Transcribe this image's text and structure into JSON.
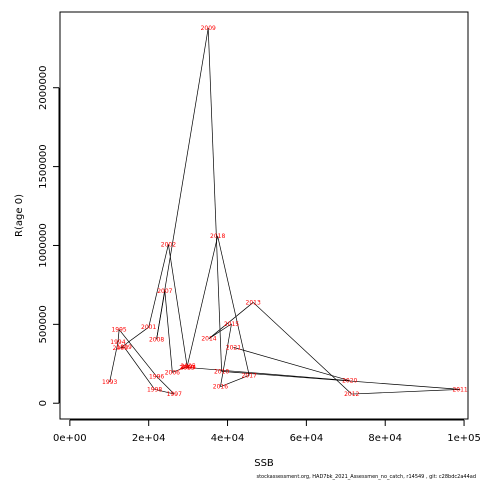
{
  "chart_data": {
    "type": "line",
    "title": "",
    "xlabel": "SSB",
    "ylabel": "R(age 0)",
    "xlim": [
      -2500,
      101000
    ],
    "ylim": [
      -100000,
      2480000
    ],
    "x_ticks": [
      0,
      20000,
      40000,
      60000,
      80000,
      100000
    ],
    "x_tick_labels": [
      "0e+00",
      "2e+04",
      "4e+04",
      "6e+04",
      "8e+04",
      "1e+05"
    ],
    "y_ticks": [
      0,
      500000,
      1000000,
      1500000,
      2000000
    ],
    "y_tick_labels": [
      "0",
      "500000",
      "1000000",
      "1500000",
      "2000000"
    ],
    "grid": false,
    "line_color": "#000000",
    "label_color": "#ff0000",
    "series": [
      {
        "points": [
          {
            "year": "1993",
            "x": 10100,
            "y": 135000
          },
          {
            "year": "1994",
            "x": 12200,
            "y": 387000
          },
          {
            "year": "1995",
            "x": 12500,
            "y": 467000
          },
          {
            "year": "1996",
            "x": 22000,
            "y": 170000
          },
          {
            "year": "1997",
            "x": 26500,
            "y": 58000
          },
          {
            "year": "1998",
            "x": 21500,
            "y": 88000
          },
          {
            "year": "1999",
            "x": 13800,
            "y": 355000
          },
          {
            "year": "2000",
            "x": 12800,
            "y": 350000
          },
          {
            "year": "2001",
            "x": 20000,
            "y": 482000
          },
          {
            "year": "2002",
            "x": 25000,
            "y": 1007000
          },
          {
            "year": "2003",
            "x": 29800,
            "y": 225000
          },
          {
            "year": "2004",
            "x": 30100,
            "y": 230000
          },
          {
            "year": "2005",
            "x": 30000,
            "y": 235000
          },
          {
            "year": "2006",
            "x": 26000,
            "y": 195000
          },
          {
            "year": "2007",
            "x": 24100,
            "y": 711000
          },
          {
            "year": "2008",
            "x": 22000,
            "y": 405000
          },
          {
            "year": "2009",
            "x": 35100,
            "y": 2378000
          },
          {
            "year": "2010",
            "x": 38500,
            "y": 202000
          },
          {
            "year": "2011",
            "x": 99000,
            "y": 88000
          },
          {
            "year": "2012",
            "x": 71500,
            "y": 58000
          },
          {
            "year": "2013",
            "x": 46500,
            "y": 639000
          },
          {
            "year": "2014",
            "x": 35300,
            "y": 410000
          },
          {
            "year": "2015",
            "x": 41000,
            "y": 503000
          },
          {
            "year": "2016",
            "x": 38200,
            "y": 105000
          },
          {
            "year": "2017",
            "x": 45500,
            "y": 177000
          },
          {
            "year": "2018",
            "x": 37500,
            "y": 1059000
          },
          {
            "year": "2019",
            "x": 29700,
            "y": 227000
          },
          {
            "year": "2020",
            "x": 71000,
            "y": 143000
          },
          {
            "year": "2021",
            "x": 41500,
            "y": 354000
          }
        ]
      }
    ],
    "annotations": [
      "stockassessment.org, HAD7bk_2021_Assessmen_no_catch, r14549 , git: c28bdc2a44ad"
    ]
  }
}
